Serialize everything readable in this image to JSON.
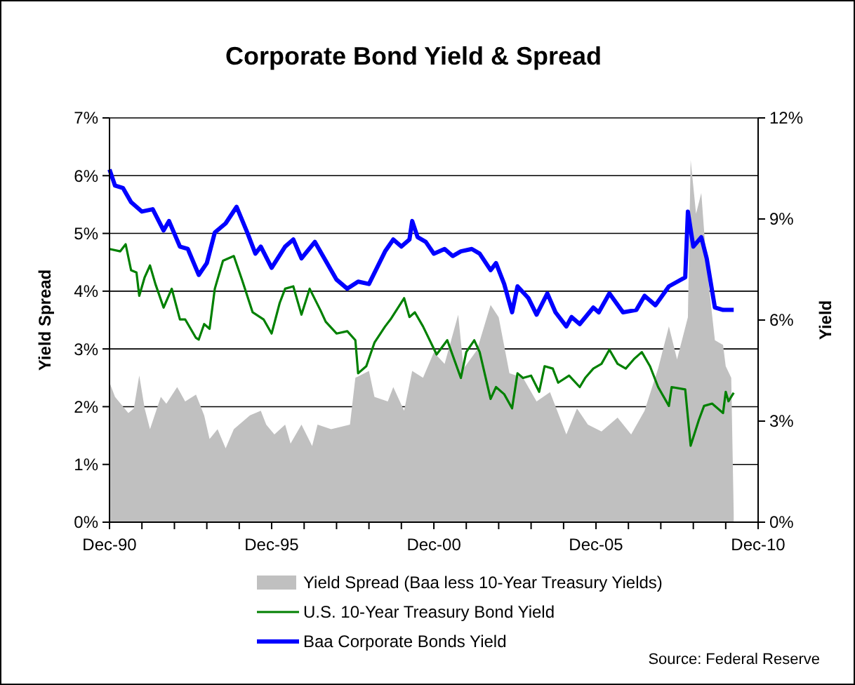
{
  "chart_data": {
    "type": "line",
    "title": "Corporate Bond Yield & Spread",
    "ylabel": "Yield Spread",
    "y2label": "Yield",
    "xlim": [
      "1990-12",
      "2010-12"
    ],
    "xticks": [
      {
        "value": "1990-12",
        "label": "Dec-90"
      },
      {
        "value": "1991-12",
        "label": null
      },
      {
        "value": "1992-12",
        "label": null
      },
      {
        "value": "1993-12",
        "label": null
      },
      {
        "value": "1994-12",
        "label": null
      },
      {
        "value": "1995-12",
        "label": "Dec-95"
      },
      {
        "value": "1996-12",
        "label": null
      },
      {
        "value": "1997-12",
        "label": null
      },
      {
        "value": "1998-12",
        "label": null
      },
      {
        "value": "1999-12",
        "label": null
      },
      {
        "value": "2000-12",
        "label": "Dec-00"
      },
      {
        "value": "2001-12",
        "label": null
      },
      {
        "value": "2002-12",
        "label": null
      },
      {
        "value": "2003-12",
        "label": null
      },
      {
        "value": "2004-12",
        "label": null
      },
      {
        "value": "2005-12",
        "label": "Dec-05"
      },
      {
        "value": "2006-12",
        "label": null
      },
      {
        "value": "2007-12",
        "label": null
      },
      {
        "value": "2008-12",
        "label": null
      },
      {
        "value": "2009-12",
        "label": null
      },
      {
        "value": "2010-12",
        "label": "Dec-10"
      }
    ],
    "ylim": [
      0,
      7
    ],
    "yticks": [
      {
        "value": 0,
        "label": "0%"
      },
      {
        "value": 1,
        "label": "1%"
      },
      {
        "value": 2,
        "label": "2%"
      },
      {
        "value": 3,
        "label": "3%"
      },
      {
        "value": 4,
        "label": "4%"
      },
      {
        "value": 5,
        "label": "5%"
      },
      {
        "value": 6,
        "label": "6%"
      },
      {
        "value": 7,
        "label": "7%"
      }
    ],
    "y2lim": [
      0,
      12
    ],
    "y2ticks": [
      {
        "value": 0,
        "label": "0%"
      },
      {
        "value": 3,
        "label": "3%"
      },
      {
        "value": 6,
        "label": "6%"
      },
      {
        "value": 9,
        "label": "9%"
      },
      {
        "value": 12,
        "label": "12%"
      }
    ],
    "grid": "y",
    "legend": "bottom",
    "annotations": [
      "Source: Federal Reserve"
    ],
    "series": [
      {
        "name": "Yield Spread (Baa less 10-Year Treasury Yields)",
        "type": "area",
        "color": "#c0c0c0",
        "x": [
          "1990-12",
          "1991-02",
          "1991-07",
          "1991-09",
          "1991-11",
          "1992-01",
          "1992-03",
          "1992-07",
          "1992-09",
          "1993-01",
          "1993-04",
          "1993-08",
          "1993-11",
          "1994-01",
          "1994-04",
          "1994-07",
          "1994-10",
          "1995-04",
          "1995-08",
          "1995-10",
          "1996-01",
          "1996-05",
          "1996-07",
          "1996-11",
          "1997-03",
          "1997-05",
          "1997-10",
          "1998-05",
          "1998-07",
          "1998-12",
          "1999-02",
          "1999-07",
          "1999-09",
          "2000-01",
          "2000-02",
          "2000-04",
          "2000-08",
          "2000-12",
          "2001-04",
          "2001-09",
          "2001-11",
          "2002-04",
          "2002-09",
          "2002-12",
          "2003-04",
          "2003-09",
          "2004-02",
          "2004-07",
          "2005-01",
          "2005-05",
          "2005-09",
          "2006-02",
          "2006-08",
          "2007-01",
          "2007-06",
          "2007-11",
          "2008-03",
          "2008-06",
          "2008-10",
          "2008-11",
          "2009-01",
          "2009-03",
          "2009-05",
          "2009-08",
          "2009-11",
          "2009-12",
          "2010-02",
          "2010-03"
        ],
        "values": [
          2.42,
          2.17,
          1.89,
          1.97,
          2.54,
          1.97,
          1.61,
          2.17,
          2.05,
          2.34,
          2.09,
          2.21,
          1.85,
          1.44,
          1.61,
          1.28,
          1.61,
          1.85,
          1.93,
          1.69,
          1.52,
          1.69,
          1.36,
          1.69,
          1.32,
          1.69,
          1.61,
          1.69,
          2.5,
          2.62,
          2.17,
          2.09,
          2.34,
          1.93,
          2.17,
          2.62,
          2.5,
          2.94,
          2.74,
          3.59,
          2.66,
          2.98,
          3.76,
          3.55,
          2.58,
          2.5,
          2.09,
          2.25,
          1.52,
          1.97,
          1.69,
          1.57,
          1.81,
          1.52,
          1.93,
          2.66,
          3.39,
          2.82,
          3.55,
          6.27,
          5.34,
          5.7,
          4.44,
          3.15,
          3.07,
          2.7,
          2.5,
          0.15
        ]
      },
      {
        "name": "U.S. 10-Year Treasury Bond Yield",
        "axis": "y2",
        "color": "#008000",
        "x": [
          "1990-12",
          "1991-04",
          "1991-06",
          "1991-08",
          "1991-10",
          "1991-11",
          "1992-01",
          "1992-03",
          "1992-05",
          "1992-08",
          "1992-11",
          "1993-02",
          "1993-04",
          "1993-08",
          "1993-09",
          "1993-11",
          "1994-01",
          "1994-03",
          "1994-06",
          "1994-10",
          "1995-01",
          "1995-05",
          "1995-09",
          "1995-12",
          "1996-03",
          "1996-05",
          "1996-08",
          "1996-11",
          "1997-02",
          "1997-06",
          "1997-08",
          "1997-12",
          "1998-04",
          "1998-07",
          "1998-08",
          "1998-11",
          "1999-02",
          "1999-06",
          "1999-08",
          "2000-01",
          "2000-03",
          "2000-05",
          "2000-08",
          "2001-01",
          "2001-05",
          "2001-10",
          "2001-12",
          "2002-03",
          "2002-05",
          "2002-09",
          "2002-11",
          "2003-02",
          "2003-05",
          "2003-07",
          "2003-09",
          "2003-12",
          "2004-03",
          "2004-05",
          "2004-08",
          "2004-10",
          "2005-02",
          "2005-06",
          "2005-08",
          "2005-11",
          "2006-02",
          "2006-05",
          "2006-08",
          "2006-11",
          "2007-02",
          "2007-05",
          "2007-08",
          "2007-11",
          "2008-03",
          "2008-04",
          "2008-09",
          "2008-11",
          "2009-02",
          "2009-04",
          "2009-07",
          "2009-11",
          "2009-12",
          "2010-01",
          "2010-03"
        ],
        "values": [
          8.11,
          8.04,
          8.25,
          7.48,
          7.41,
          6.72,
          7.27,
          7.62,
          7.07,
          6.37,
          6.93,
          6.02,
          6.02,
          5.47,
          5.42,
          5.88,
          5.74,
          6.93,
          7.76,
          7.9,
          7.2,
          6.23,
          6.02,
          5.6,
          6.51,
          6.93,
          7.0,
          6.16,
          6.93,
          6.3,
          5.95,
          5.6,
          5.67,
          5.4,
          4.42,
          4.63,
          5.33,
          5.81,
          6.02,
          6.65,
          6.09,
          6.23,
          5.81,
          4.98,
          5.4,
          4.28,
          5.05,
          5.4,
          5.05,
          3.66,
          4.01,
          3.8,
          3.38,
          4.42,
          4.28,
          4.35,
          3.87,
          4.63,
          4.56,
          4.14,
          4.35,
          4.01,
          4.28,
          4.56,
          4.7,
          5.12,
          4.7,
          4.56,
          4.84,
          5.05,
          4.63,
          4.01,
          3.45,
          4.01,
          3.94,
          2.27,
          3.03,
          3.45,
          3.52,
          3.24,
          3.87,
          3.59,
          3.84
        ]
      },
      {
        "name": "Baa Corporate Bonds Yield",
        "axis": "y2",
        "color": "#0000ff",
        "x": [
          "1990-12",
          "1991-02",
          "1991-05",
          "1991-08",
          "1991-12",
          "1992-04",
          "1992-08",
          "1992-10",
          "1993-02",
          "1993-05",
          "1993-09",
          "1993-12",
          "1994-03",
          "1994-07",
          "1994-11",
          "1995-03",
          "1995-06",
          "1995-08",
          "1995-12",
          "1996-05",
          "1996-08",
          "1996-11",
          "1997-04",
          "1997-07",
          "1997-12",
          "1998-04",
          "1998-08",
          "1998-12",
          "1999-03",
          "1999-06",
          "1999-09",
          "1999-12",
          "2000-03",
          "2000-04",
          "2000-06",
          "2000-09",
          "2000-12",
          "2001-04",
          "2001-07",
          "2001-10",
          "2002-02",
          "2002-05",
          "2002-09",
          "2002-11",
          "2003-02",
          "2003-05",
          "2003-07",
          "2003-11",
          "2004-02",
          "2004-06",
          "2004-09",
          "2005-01",
          "2005-03",
          "2005-06",
          "2005-11",
          "2006-01",
          "2006-05",
          "2006-10",
          "2007-03",
          "2007-06",
          "2007-10",
          "2008-03",
          "2008-09",
          "2008-10",
          "2008-12",
          "2009-03",
          "2009-05",
          "2009-08",
          "2009-11",
          "2010-03"
        ],
        "values": [
          10.47,
          9.99,
          9.92,
          9.5,
          9.22,
          9.29,
          8.66,
          8.94,
          8.18,
          8.11,
          7.34,
          7.69,
          8.6,
          8.87,
          9.36,
          8.6,
          7.97,
          8.18,
          7.55,
          8.18,
          8.39,
          7.83,
          8.32,
          7.9,
          7.2,
          6.93,
          7.14,
          7.07,
          7.55,
          8.04,
          8.39,
          8.18,
          8.39,
          8.94,
          8.46,
          8.32,
          7.97,
          8.11,
          7.9,
          8.04,
          8.11,
          7.97,
          7.48,
          7.69,
          7.07,
          6.23,
          7.0,
          6.65,
          6.16,
          6.79,
          6.23,
          5.81,
          6.09,
          5.88,
          6.37,
          6.23,
          6.79,
          6.23,
          6.3,
          6.72,
          6.44,
          7.0,
          7.27,
          9.22,
          8.18,
          8.46,
          7.83,
          6.37,
          6.3,
          6.3
        ]
      }
    ]
  }
}
